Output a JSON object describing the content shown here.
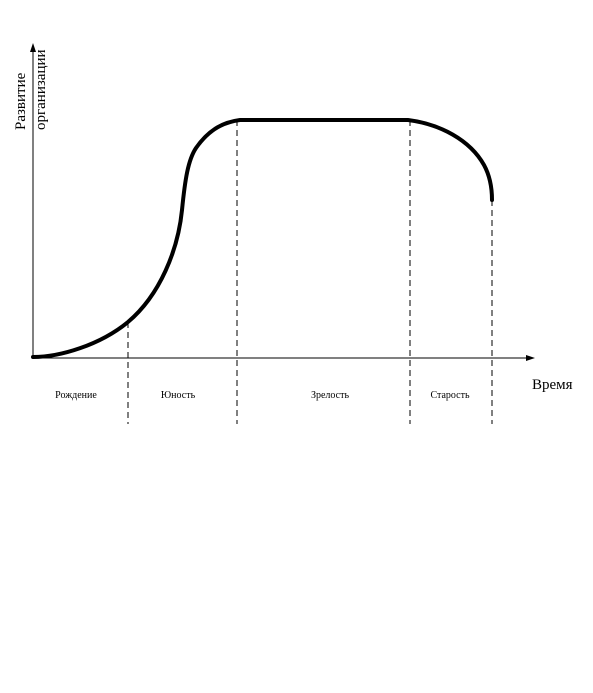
{
  "axes": {
    "y_label_line1": "Развитие",
    "y_label_line2": "организации",
    "x_label": "Время"
  },
  "stages": [
    {
      "label": "Рождение"
    },
    {
      "label": "Юность"
    },
    {
      "label": "Зрелость"
    },
    {
      "label": "Старость"
    }
  ],
  "style": {
    "line_color": "#000000",
    "background": "#ffffff"
  }
}
